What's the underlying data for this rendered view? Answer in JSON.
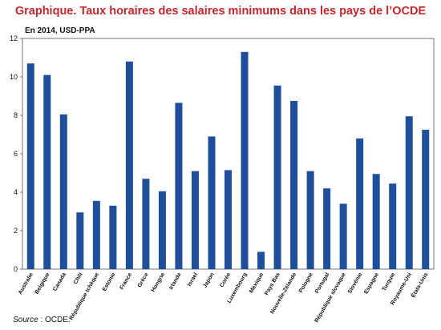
{
  "chart_data": {
    "type": "bar",
    "title": "Graphique. Taux horaires des salaires minimums dans les pays de l’OCDE",
    "subtitle": "En 2014, USD-PPA",
    "source_label": "Source",
    "source_text": " : OCDE.",
    "ylim": [
      0,
      12
    ],
    "yticks": [
      0,
      2,
      4,
      6,
      8,
      10,
      12
    ],
    "grid": false,
    "bar_color": "#1f4e9c",
    "categories": [
      "Australie",
      "Belgique",
      "Canada",
      "Chili",
      "République tchèque",
      "Estonie",
      "France",
      "Grèce",
      "Hongrie",
      "Irlande",
      "Israel",
      "Japon",
      "Corée",
      "Luxembourg",
      "Mexique",
      "Pays Bas",
      "Nouvelle-Zélande",
      "Pologne",
      "Portugal",
      "République slovaque",
      "Slovénie",
      "Espagne",
      "Turquie",
      "Royaume-Uni",
      "États-Unis"
    ],
    "values": [
      10.7,
      10.1,
      8.05,
      2.95,
      3.55,
      3.3,
      10.8,
      4.7,
      4.05,
      8.65,
      5.1,
      6.9,
      5.15,
      11.3,
      0.9,
      9.55,
      8.75,
      5.1,
      4.2,
      3.4,
      6.8,
      4.95,
      4.45,
      7.95,
      7.25
    ]
  }
}
